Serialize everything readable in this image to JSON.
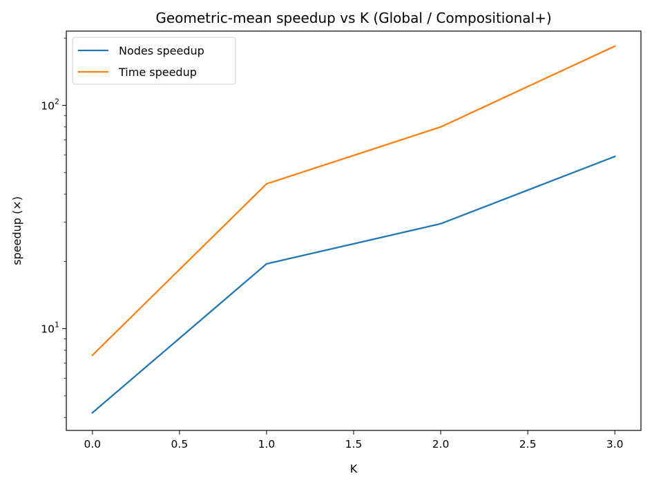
{
  "chart_data": {
    "type": "line",
    "title": "Geometric-mean speedup vs K (Global / Compositional+)",
    "xlabel": "K",
    "ylabel": "speedup (×)",
    "xscale": "linear",
    "yscale": "log",
    "xlim": [
      -0.15,
      3.15
    ],
    "ylim": [
      3.5,
      215
    ],
    "xticks": [
      0.0,
      0.5,
      1.0,
      1.5,
      2.0,
      2.5,
      3.0
    ],
    "xtick_labels": [
      "0.0",
      "0.5",
      "1.0",
      "1.5",
      "2.0",
      "2.5",
      "3.0"
    ],
    "yticks": [
      {
        "base": "10",
        "exp": "1",
        "value": 10
      },
      {
        "base": "10",
        "exp": "2",
        "value": 100
      }
    ],
    "grid": false,
    "legend_position": "upper left",
    "series": [
      {
        "name": "Nodes speedup",
        "color": "#1f77b4",
        "x": [
          0,
          1,
          2,
          3
        ],
        "y": [
          4.2,
          19.5,
          29.5,
          59
        ]
      },
      {
        "name": "Time speedup",
        "color": "#ff7f0e",
        "x": [
          0,
          1,
          2,
          3
        ],
        "y": [
          7.6,
          44.5,
          80,
          184
        ]
      }
    ]
  }
}
